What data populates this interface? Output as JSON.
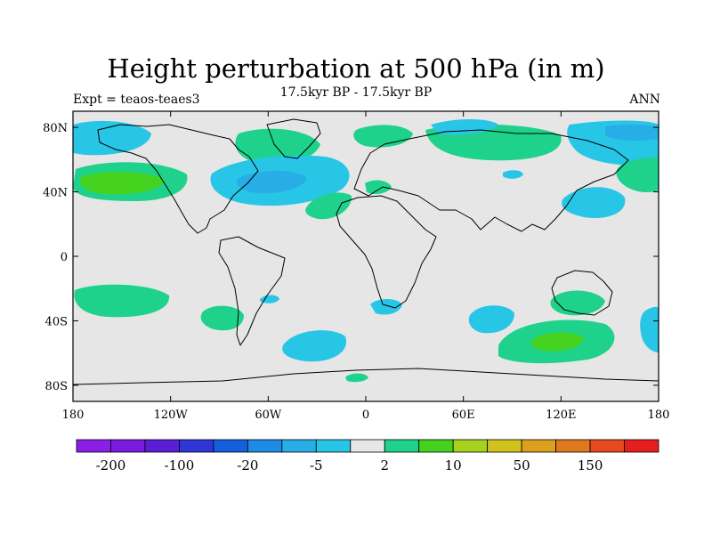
{
  "title": "Height perturbation at 500 hPa (in m)",
  "subtitle": "17.5kyr BP - 17.5kyr BP",
  "left_string": "Expt = teaos-teaes3",
  "right_string": "ANN",
  "map": {
    "projection": "cylindrical equidistant",
    "lon_range": [
      -180,
      180
    ],
    "lat_range": [
      -90,
      90
    ],
    "background_color": "#e6e6e6",
    "x_ticks": [
      {
        "value": -180,
        "label": "180"
      },
      {
        "value": -120,
        "label": "120W"
      },
      {
        "value": -60,
        "label": "60W"
      },
      {
        "value": 0,
        "label": "0"
      },
      {
        "value": 60,
        "label": "60E"
      },
      {
        "value": 120,
        "label": "120E"
      },
      {
        "value": 180,
        "label": "180"
      }
    ],
    "y_ticks": [
      {
        "value": 80,
        "label": "80N"
      },
      {
        "value": 40,
        "label": "40N"
      },
      {
        "value": 0,
        "label": "0"
      },
      {
        "value": -40,
        "label": "40S"
      },
      {
        "value": -80,
        "label": "80S"
      }
    ]
  },
  "colorbar": {
    "colors": [
      "#8c1fe6",
      "#7a1ae0",
      "#5a1ed4",
      "#2e36d6",
      "#1460dc",
      "#1e8ce6",
      "#28aee6",
      "#28c6e6",
      "#e6e6e6",
      "#1ed28c",
      "#44d21e",
      "#a6d21e",
      "#d2c21e",
      "#dca01e",
      "#e0781e",
      "#e64a1e",
      "#e61e1e"
    ],
    "labels": [
      {
        "text": "-200",
        "after_box": 1
      },
      {
        "text": "-100",
        "after_box": 3
      },
      {
        "text": "-20",
        "after_box": 5
      },
      {
        "text": "-5",
        "after_box": 7
      },
      {
        "text": "2",
        "after_box": 9
      },
      {
        "text": "10",
        "after_box": 11
      },
      {
        "text": "50",
        "after_box": 13
      },
      {
        "text": "150",
        "after_box": 15
      }
    ]
  },
  "anomaly_colors": {
    "neg_weak": "#28c6e6",
    "neg_mid": "#28aee6",
    "pos_weak": "#1ed28c",
    "pos_mid": "#44d21e"
  }
}
